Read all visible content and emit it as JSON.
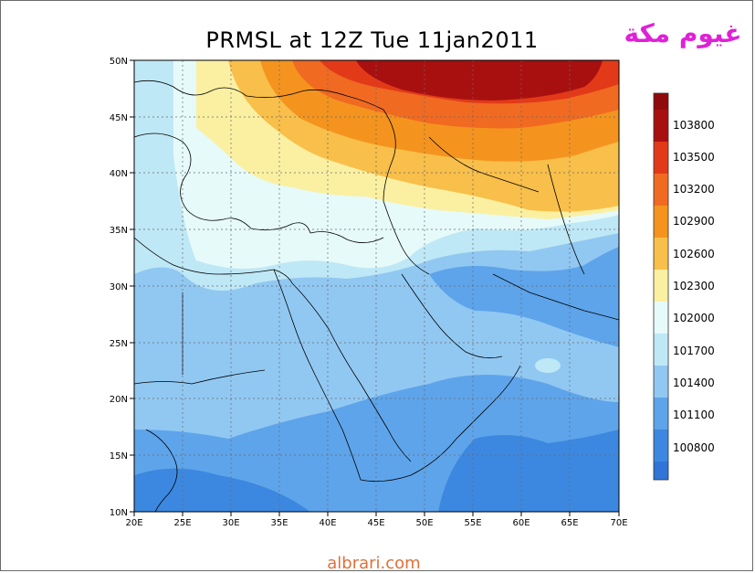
{
  "title": "PRMSL at 12Z Tue 11jan2011",
  "logo_text": "غيوم مكة",
  "footer": "albrari.com",
  "map": {
    "lon_ticks": [
      "20E",
      "25E",
      "30E",
      "35E",
      "40E",
      "45E",
      "50E",
      "55E",
      "60E",
      "65E",
      "70E"
    ],
    "lat_ticks": [
      "50N",
      "45N",
      "40N",
      "35N",
      "30N",
      "25N",
      "20N",
      "15N",
      "10N"
    ]
  },
  "colorbar": {
    "levels": [
      {
        "label": "103800",
        "color": "#a81010"
      },
      {
        "label": "103500",
        "color": "#e23a18"
      },
      {
        "label": "103200",
        "color": "#f06a22"
      },
      {
        "label": "102900",
        "color": "#f4941e"
      },
      {
        "label": "102600",
        "color": "#f8bf4a"
      },
      {
        "label": "102300",
        "color": "#fbf0a2"
      },
      {
        "label": "102000",
        "color": "#e6fafa"
      },
      {
        "label": "101700",
        "color": "#bfe8f6"
      },
      {
        "label": "101400",
        "color": "#91c8f2"
      },
      {
        "label": "101100",
        "color": "#5ea4ea"
      },
      {
        "label": "100800",
        "color": "#3c88e0"
      }
    ],
    "top_color": "#8f0a0a",
    "bottom_color": "#2f74d6"
  }
}
